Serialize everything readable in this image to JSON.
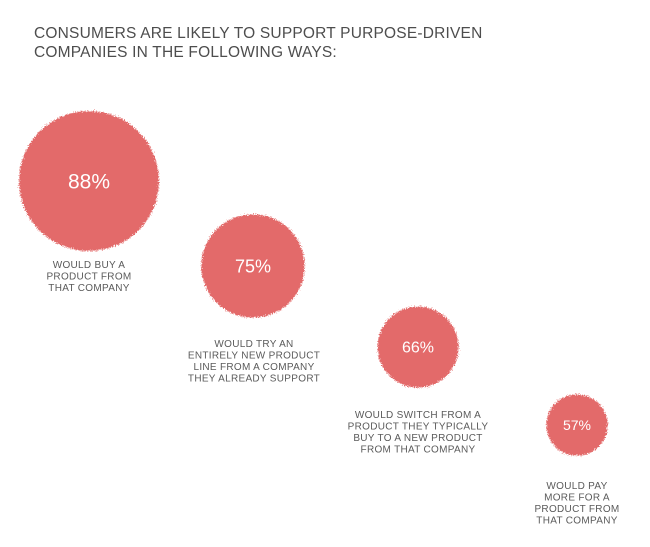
{
  "title": {
    "line1": "CONSUMERS ARE LIKELY TO SUPPORT PURPOSE-DRIVEN",
    "line2": "COMPANIES IN THE FOLLOWING WAYS:"
  },
  "colors": {
    "bubble": "#e36b6a",
    "text": "#4d4d4d"
  },
  "chart_data": {
    "type": "bubble",
    "title": "CONSUMERS ARE LIKELY TO SUPPORT PURPOSE-DRIVEN COMPANIES IN THE FOLLOWING WAYS:",
    "unit": "%",
    "items": [
      {
        "value": 88,
        "value_label": "88%",
        "label_lines": [
          "WOULD BUY A",
          "PRODUCT FROM",
          "THAT COMPANY"
        ]
      },
      {
        "value": 75,
        "value_label": "75%",
        "label_lines": [
          "WOULD TRY AN",
          "ENTIRELY NEW PRODUCT",
          "LINE FROM A COMPANY",
          "THEY ALREADY SUPPORT"
        ]
      },
      {
        "value": 66,
        "value_label": "66%",
        "label_lines": [
          "WOULD SWITCH FROM A",
          "PRODUCT THEY TYPICALLY",
          "BUY TO A NEW PRODUCT",
          "FROM THAT COMPANY"
        ]
      },
      {
        "value": 57,
        "value_label": "57%",
        "label_lines": [
          "WOULD PAY",
          "MORE FOR A",
          "PRODUCT FROM",
          "THAT COMPANY"
        ]
      }
    ]
  }
}
